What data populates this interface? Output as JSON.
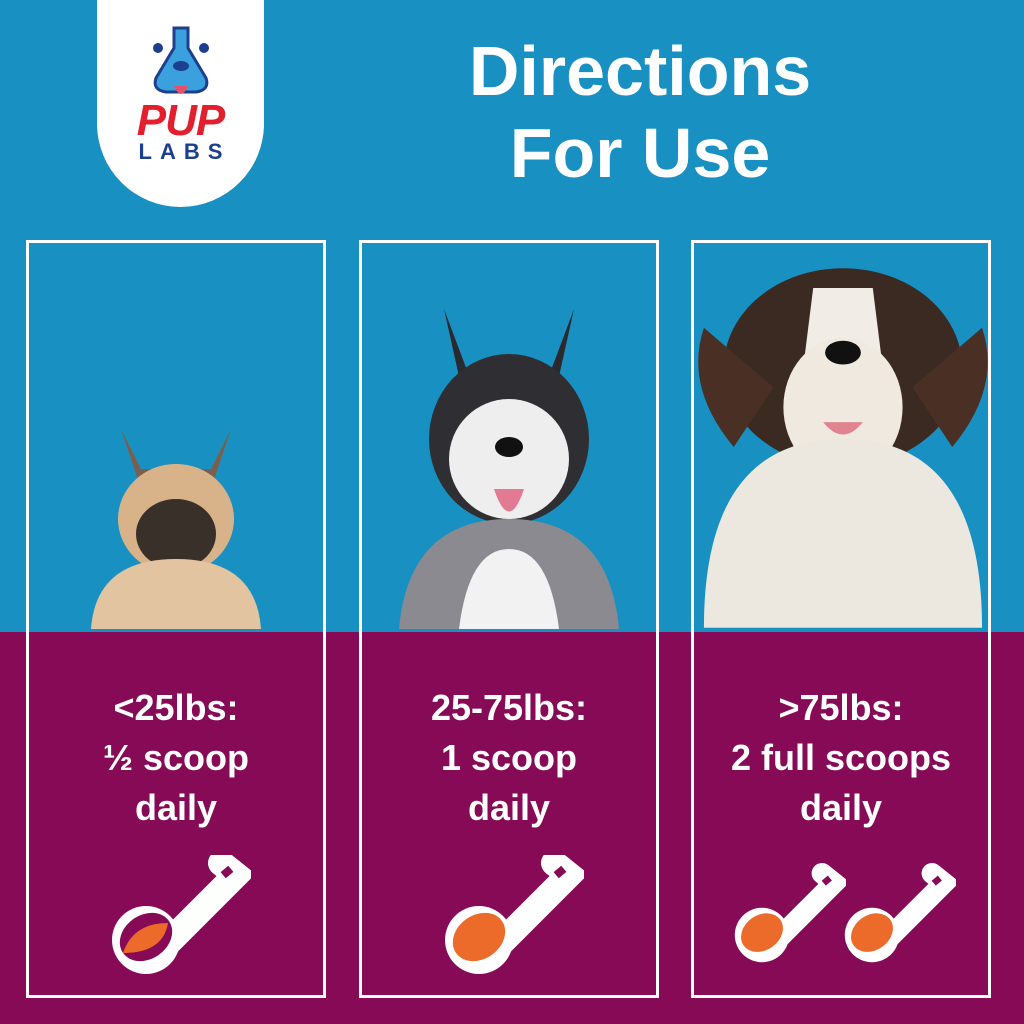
{
  "brand": {
    "logo_top": "PUP",
    "logo_bottom": "LABS"
  },
  "header": {
    "title_line1": "Directions",
    "title_line2": "For Use"
  },
  "colors": {
    "top_background": "#1891c2",
    "bottom_background": "#870a56",
    "scoop_fill": "#ec6a2a"
  },
  "panels": [
    {
      "dog": "french-bulldog",
      "weight": "<25lbs:",
      "amount": "½ scoop",
      "frequency": "daily",
      "scoops": 0.5
    },
    {
      "dog": "siberian-husky",
      "weight": "25-75lbs:",
      "amount": "1 scoop",
      "frequency": "daily",
      "scoops": 1
    },
    {
      "dog": "saint-bernard",
      "weight": ">75lbs:",
      "amount": "2 full scoops",
      "frequency": "daily",
      "scoops": 2
    }
  ]
}
